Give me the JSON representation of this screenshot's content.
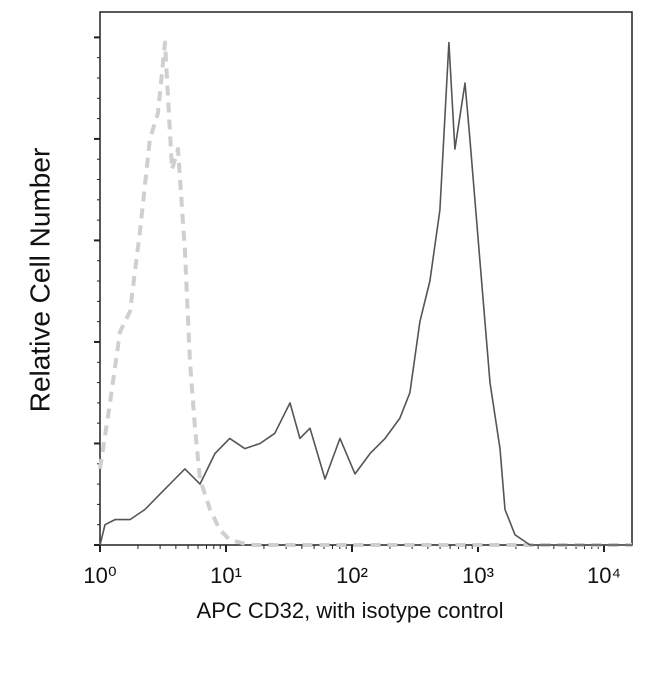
{
  "chart_data": {
    "type": "line",
    "x_label": "APC CD32, with isotype control",
    "y_label": "Relative Cell Number",
    "xscale": "log",
    "xlim": [
      1,
      16680
    ],
    "xticks": [
      {
        "value": 1,
        "label": "10⁰"
      },
      {
        "value": 10,
        "label": "10¹"
      },
      {
        "value": 100,
        "label": "10²"
      },
      {
        "value": 1000,
        "label": "10³"
      },
      {
        "value": 10000,
        "label": "10⁴"
      }
    ],
    "ylim": [
      0,
      105
    ],
    "yticks": [
      0,
      20,
      40,
      60,
      80,
      100
    ],
    "series": [
      {
        "name": "Isotype control",
        "color": "#cfcfcf",
        "dashed": true,
        "x": [
          1,
          1.2,
          1.44,
          1.73,
          2.08,
          2.49,
          2.88,
          3.28,
          3.73,
          4.16,
          4.72,
          5.18,
          5.67,
          6.22,
          7.47,
          8.95,
          10.7,
          15.5,
          38.6,
          240,
          1495,
          16680
        ],
        "values": [
          15,
          28,
          42,
          46,
          62,
          80,
          85,
          99,
          74,
          78,
          58,
          36,
          23,
          13,
          7,
          3,
          1,
          0,
          0,
          0,
          0,
          0
        ]
      },
      {
        "name": "APC CD32",
        "color": "#555555",
        "dashed": false,
        "x": [
          1,
          1.096,
          1.315,
          1.73,
          2.27,
          2.99,
          3.93,
          4.72,
          6.22,
          8.17,
          10.7,
          14.1,
          18.6,
          24.4,
          32.2,
          38.6,
          46.4,
          61.1,
          80.3,
          105.6,
          139,
          183,
          240,
          288,
          346,
          415,
          498,
          587,
          656,
          788,
          862,
          1036,
          1245,
          1495,
          1638,
          1968,
          2588,
          16680
        ],
        "values": [
          0,
          4,
          5,
          5,
          7,
          10,
          13,
          15,
          12,
          18,
          21,
          19,
          20,
          22,
          28,
          21,
          23,
          13,
          21,
          14,
          18,
          21,
          25,
          30,
          44,
          52,
          66,
          99,
          78,
          91,
          80,
          56,
          32,
          19,
          7,
          2,
          0,
          0
        ]
      }
    ]
  }
}
